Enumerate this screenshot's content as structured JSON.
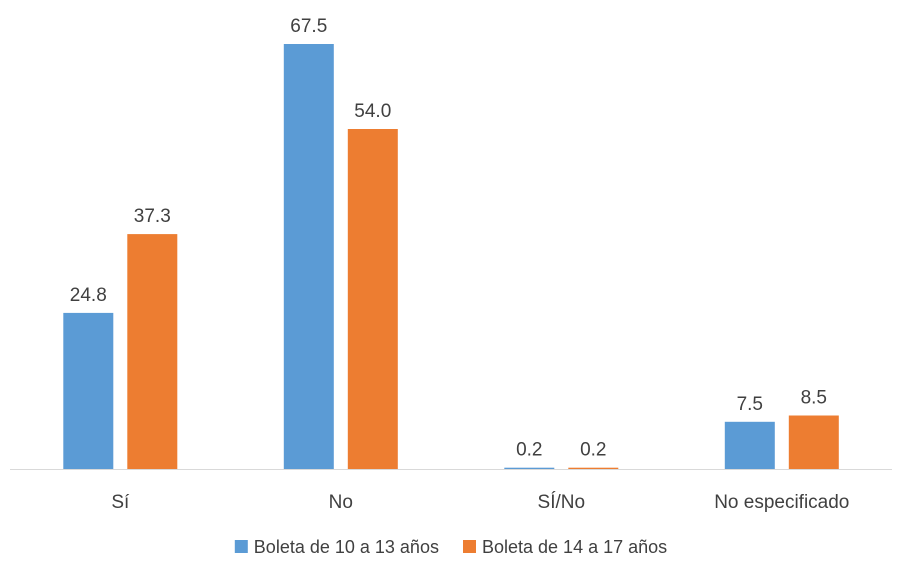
{
  "chart_data": {
    "type": "bar",
    "categories": [
      "Sí",
      "No",
      "SÍ/No",
      "No especificado"
    ],
    "series": [
      {
        "name": "Boleta de 10 a 13 años",
        "color": "#5B9BD5",
        "values": [
          24.8,
          67.5,
          0.2,
          7.5
        ],
        "labels": [
          "24.8",
          "67.5",
          "0.2",
          "7.5"
        ]
      },
      {
        "name": "Boleta de 14 a 17 años",
        "color": "#ED7D31",
        "values": [
          37.3,
          54.0,
          0.2,
          8.5
        ],
        "labels": [
          "37.3",
          "54.0",
          "0.2",
          "8.5"
        ]
      }
    ],
    "ylim": [
      0,
      67.5
    ],
    "grid": false,
    "legend_position": "bottom",
    "axis_color": "#D9D9D9"
  }
}
